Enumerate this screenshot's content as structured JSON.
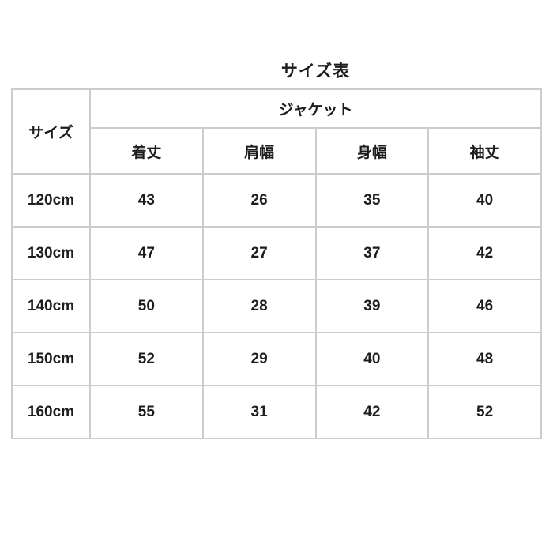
{
  "chart_data": {
    "type": "table",
    "title": "サイズ表",
    "corner_header": "サイズ",
    "group_header": "ジャケット",
    "measure_headers": [
      "着丈",
      "肩幅",
      "身幅",
      "袖丈"
    ],
    "rows": [
      {
        "size": "120cm",
        "values": [
          43,
          26,
          35,
          40
        ]
      },
      {
        "size": "130cm",
        "values": [
          47,
          27,
          37,
          42
        ]
      },
      {
        "size": "140cm",
        "values": [
          50,
          28,
          39,
          46
        ]
      },
      {
        "size": "150cm",
        "values": [
          52,
          29,
          40,
          48
        ]
      },
      {
        "size": "160cm",
        "values": [
          55,
          31,
          42,
          52
        ]
      }
    ],
    "layout_hints": {
      "header_levels": 2,
      "row_header_column": "サイズ",
      "grid": true
    }
  },
  "colors": {
    "border": "#cccccc",
    "text": "#1d1d1d",
    "background": "#ffffff"
  }
}
